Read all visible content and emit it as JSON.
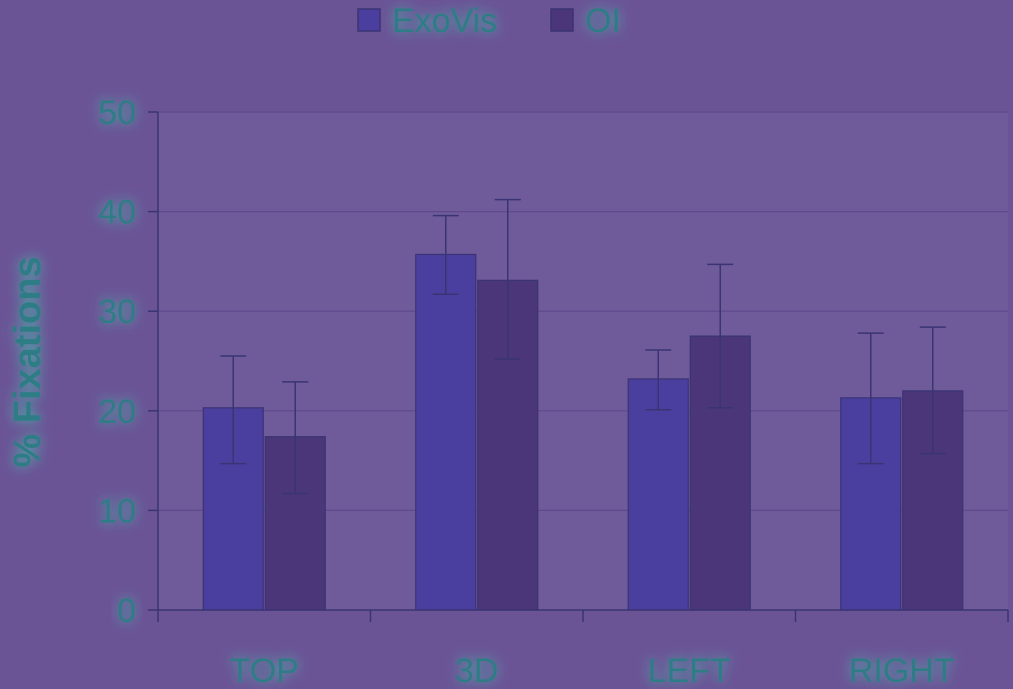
{
  "colors": {
    "background": "#6b5496",
    "plot_background": "#6f5a9a",
    "gridline": "#5d4b8c",
    "axis": "#3a3474",
    "exovis_bar": "#4a3f9e",
    "oi_bar": "#4a3678",
    "error_bar": "#3a3474",
    "text": "#2e7d86",
    "glow": "#3fd3b0"
  },
  "chart_data": {
    "type": "bar",
    "categories": [
      "TOP",
      "3D",
      "LEFT",
      "RIGHT"
    ],
    "series": [
      {
        "name": "ExoVis",
        "values": [
          20.3,
          35.7,
          23.2,
          21.3
        ],
        "error_low": [
          14.7,
          31.7,
          20.1,
          14.7
        ],
        "error_high": [
          25.5,
          39.6,
          26.1,
          27.8
        ]
      },
      {
        "name": "OI",
        "values": [
          17.4,
          33.1,
          27.5,
          22.0
        ],
        "error_low": [
          11.7,
          25.2,
          20.3,
          15.7
        ],
        "error_high": [
          22.9,
          41.2,
          34.7,
          28.4
        ]
      }
    ],
    "ylabel": "% Fixations",
    "ylim": [
      0,
      50
    ],
    "yticks": [
      0,
      10,
      20,
      30,
      40,
      50
    ],
    "grid": true,
    "legend_position": "top-center"
  }
}
